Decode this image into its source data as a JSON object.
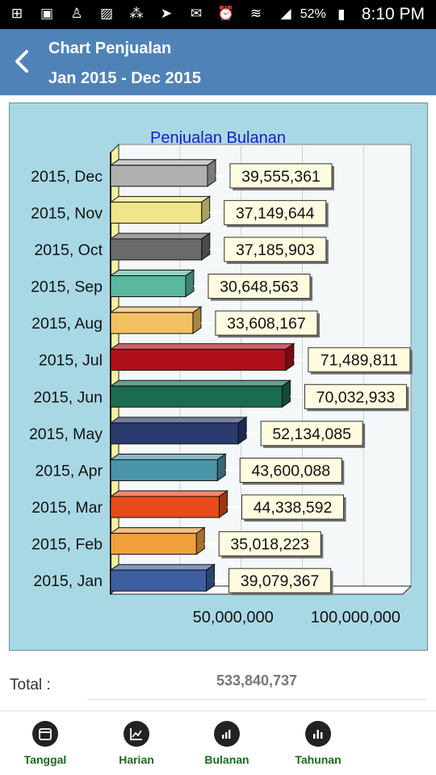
{
  "status_bar": {
    "battery": "52%",
    "time": "8:10 PM"
  },
  "header": {
    "title": "Chart Penjualan",
    "subtitle": "Jan 2015 - Dec 2015"
  },
  "chart_data": {
    "type": "bar",
    "orientation": "horizontal",
    "title": "Penjualan Bulanan",
    "xlabel": "",
    "ylabel": "",
    "xlim": [
      0,
      120000000
    ],
    "x_ticks": [
      50000000,
      100000000
    ],
    "x_tick_labels": [
      "50,000,000",
      "100,000,000"
    ],
    "grid": true,
    "categories": [
      "2015, Jan",
      "2015, Feb",
      "2015, Mar",
      "2015, Apr",
      "2015, May",
      "2015, Jun",
      "2015, Jul",
      "2015, Aug",
      "2015, Sep",
      "2015, Oct",
      "2015, Nov",
      "2015, Dec"
    ],
    "values": [
      39079367,
      35018223,
      44338592,
      43600088,
      52134085,
      70032933,
      71489811,
      33608167,
      30648563,
      37185903,
      37149644,
      39555361
    ],
    "value_labels": [
      "39,079,367",
      "35,018,223",
      "44,338,592",
      "43,600,088",
      "52,134,085",
      "70,032,933",
      "71,489,811",
      "33,608,167",
      "30,648,563",
      "37,185,903",
      "37,149,644",
      "39,555,361"
    ],
    "colors": [
      "#3d5fa0",
      "#f0a03a",
      "#e84a1a",
      "#4a94a8",
      "#2a3a6e",
      "#1b6b4e",
      "#b0101a",
      "#f2c060",
      "#5ab89e",
      "#6a6a6a",
      "#f2e68a",
      "#b0b0b0"
    ]
  },
  "total": {
    "label": "Total :",
    "value": "533,840,737"
  },
  "bottom_nav": [
    {
      "label": "Tanggal",
      "icon": "calendar-icon"
    },
    {
      "label": "Harian",
      "icon": "line-chart-icon"
    },
    {
      "label": "Bulanan",
      "icon": "bar-chart-icon"
    },
    {
      "label": "Tahunan",
      "icon": "bar-chart-icon"
    }
  ]
}
